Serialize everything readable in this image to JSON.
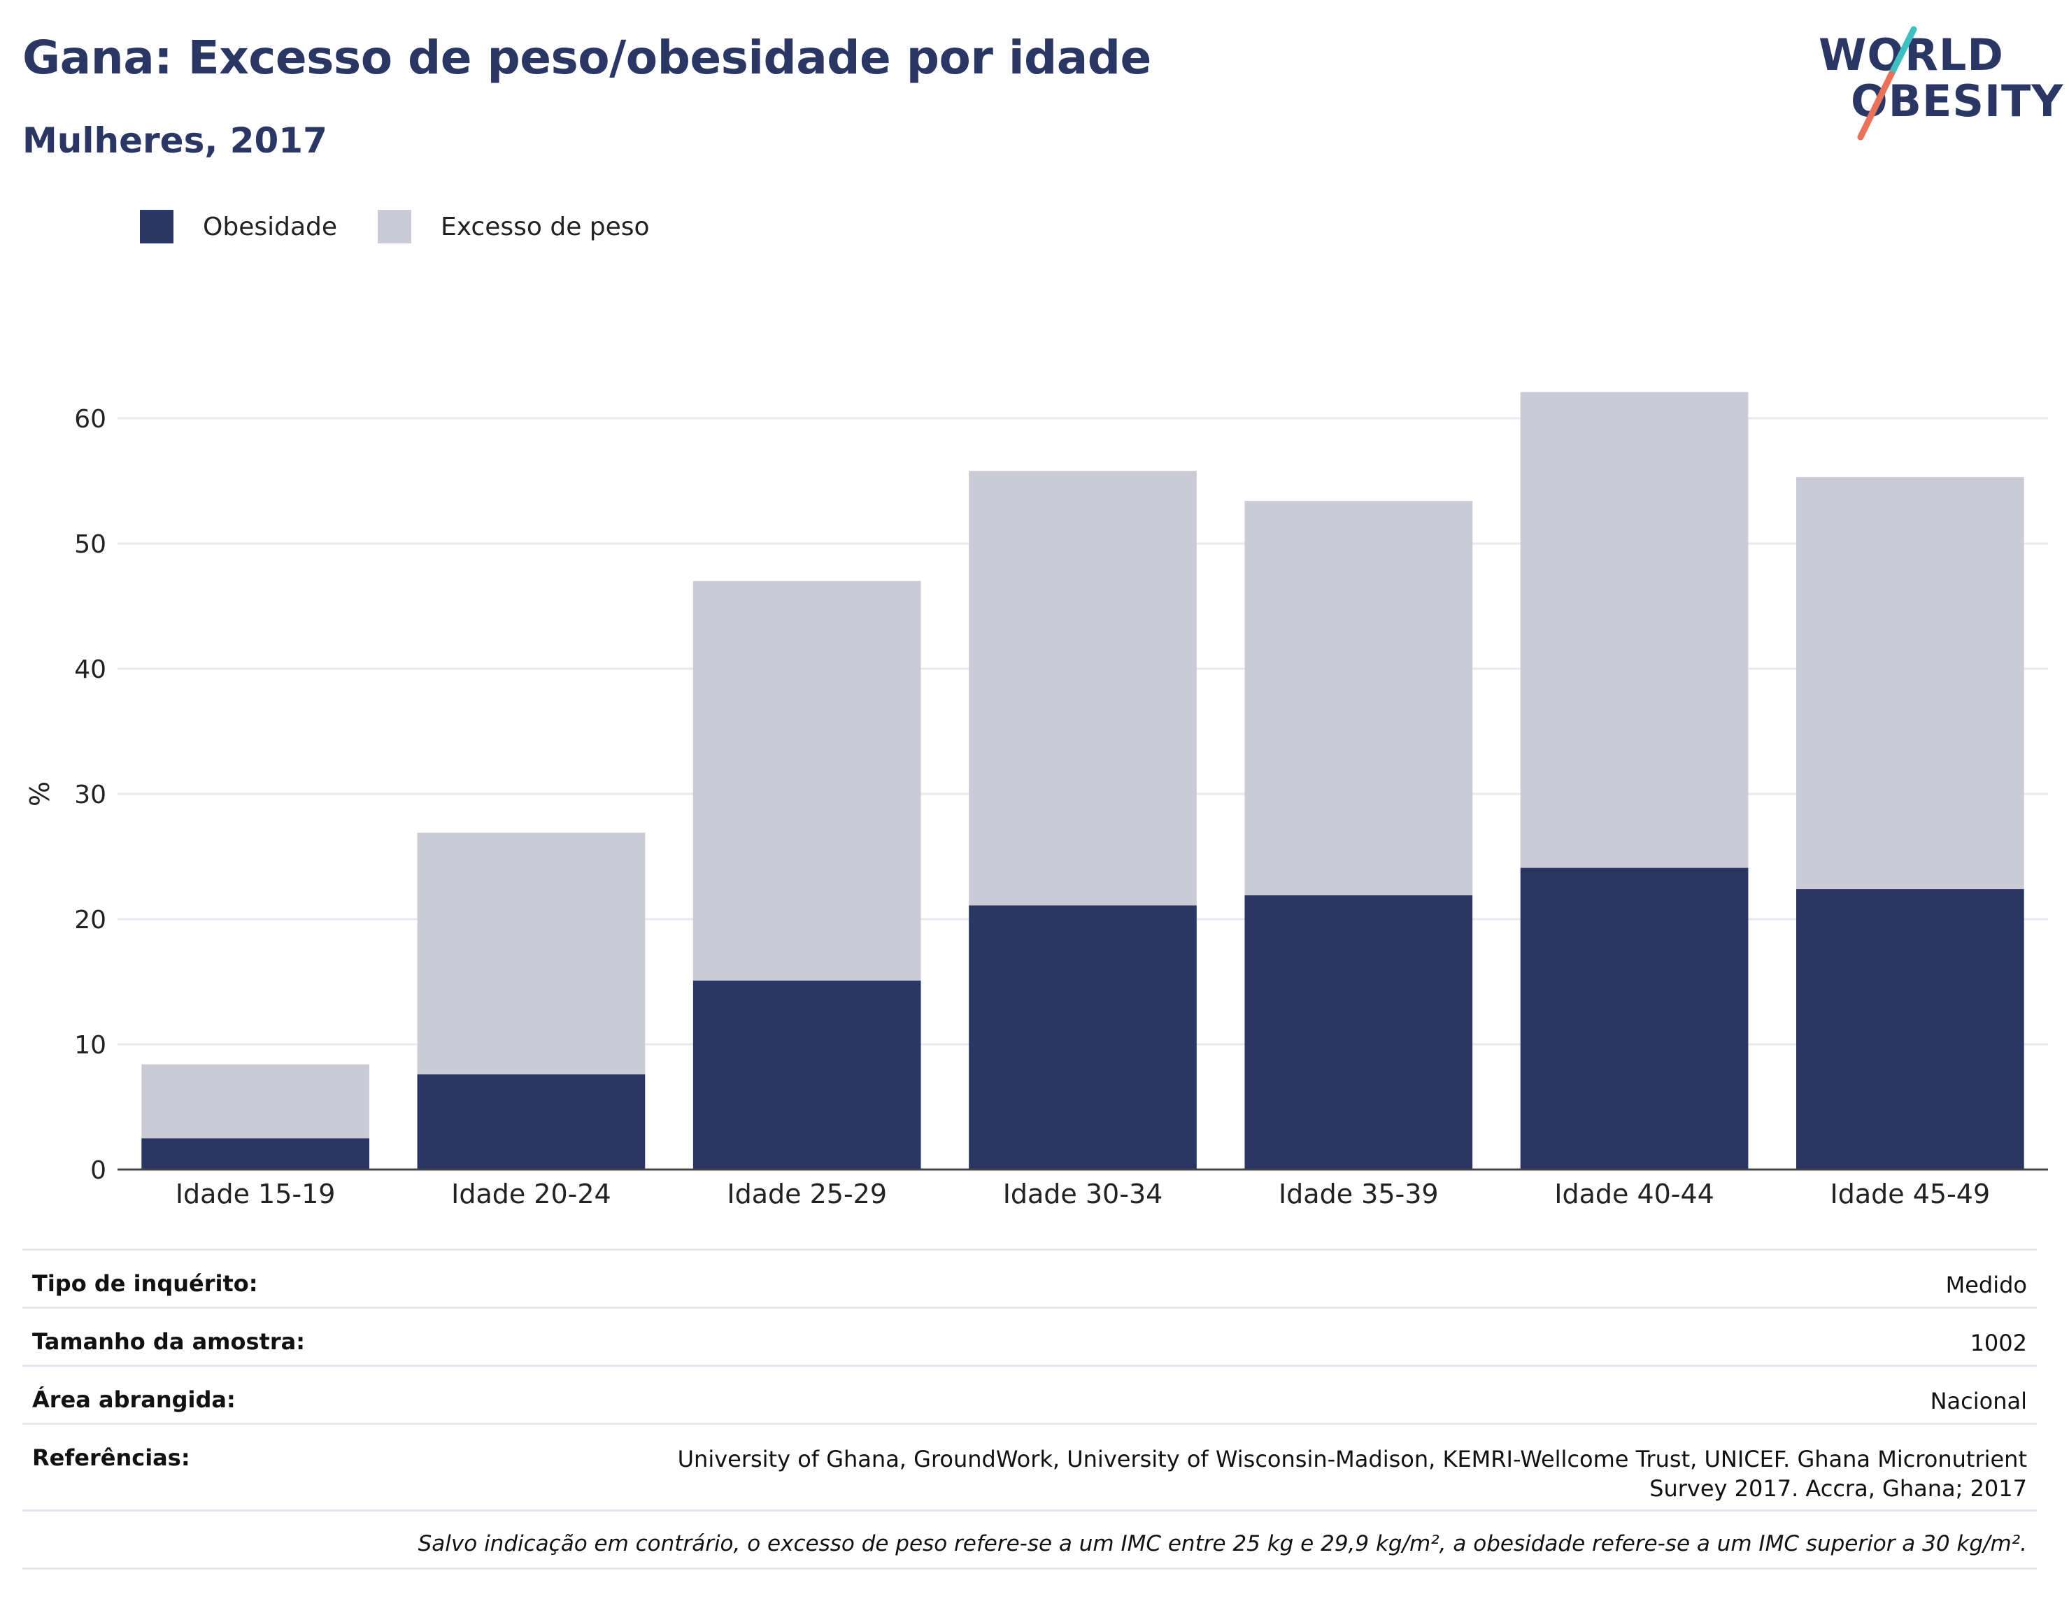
{
  "header": {
    "title": "Gana: Excesso de peso/obesidade por idade",
    "subtitle": "Mulheres, 2017"
  },
  "logo": {
    "line1": "WORLD",
    "line2": "OBESITY",
    "colors": {
      "text": "#2a3663",
      "slash_top": "#3fbfbf",
      "slash_bottom": "#e8735a"
    }
  },
  "legend": [
    {
      "label": "Obesidade",
      "color": "#2a3663"
    },
    {
      "label": "Excesso de peso",
      "color": "#cacbd7"
    }
  ],
  "chart_data": {
    "type": "bar",
    "stacked": true,
    "categories": [
      "Idade 15-19",
      "Idade 20-24",
      "Idade 25-29",
      "Idade 30-34",
      "Idade 35-39",
      "Idade 40-44",
      "Idade 45-49"
    ],
    "series": [
      {
        "name": "Obesidade",
        "color": "#2a3663",
        "values": [
          2.5,
          7.6,
          15.1,
          21.1,
          21.9,
          24.1,
          22.4
        ]
      },
      {
        "name": "Excesso de peso",
        "color": "#cacbd7",
        "values": [
          5.9,
          19.3,
          31.9,
          34.7,
          31.5,
          38.0,
          32.9
        ]
      }
    ],
    "totals": [
      8.4,
      26.9,
      47.0,
      55.8,
      53.4,
      62.1,
      55.3
    ],
    "ylabel": "%",
    "xlabel": "",
    "ylim": [
      0,
      65
    ],
    "yticks": [
      0,
      10,
      20,
      30,
      40,
      50,
      60
    ],
    "grid": true,
    "legend_position": "top-left"
  },
  "info": {
    "rows": [
      {
        "key": "Tipo de inquérito:",
        "value": "Medido"
      },
      {
        "key": "Tamanho da amostra:",
        "value": "1002"
      },
      {
        "key": "Área abrangida:",
        "value": "Nacional"
      },
      {
        "key": "Referências:",
        "value": "University of Ghana, GroundWork, University of Wisconsin-Madison, KEMRI-Wellcome Trust, UNICEF. Ghana Micronutrient Survey 2017. Accra, Ghana; 2017"
      }
    ],
    "note": "Salvo indicação em contrário, o excesso de peso refere-se a um IMC entre 25 kg e 29,9 kg/m², a obesidade refere-se a um IMC superior a 30 kg/m²."
  }
}
